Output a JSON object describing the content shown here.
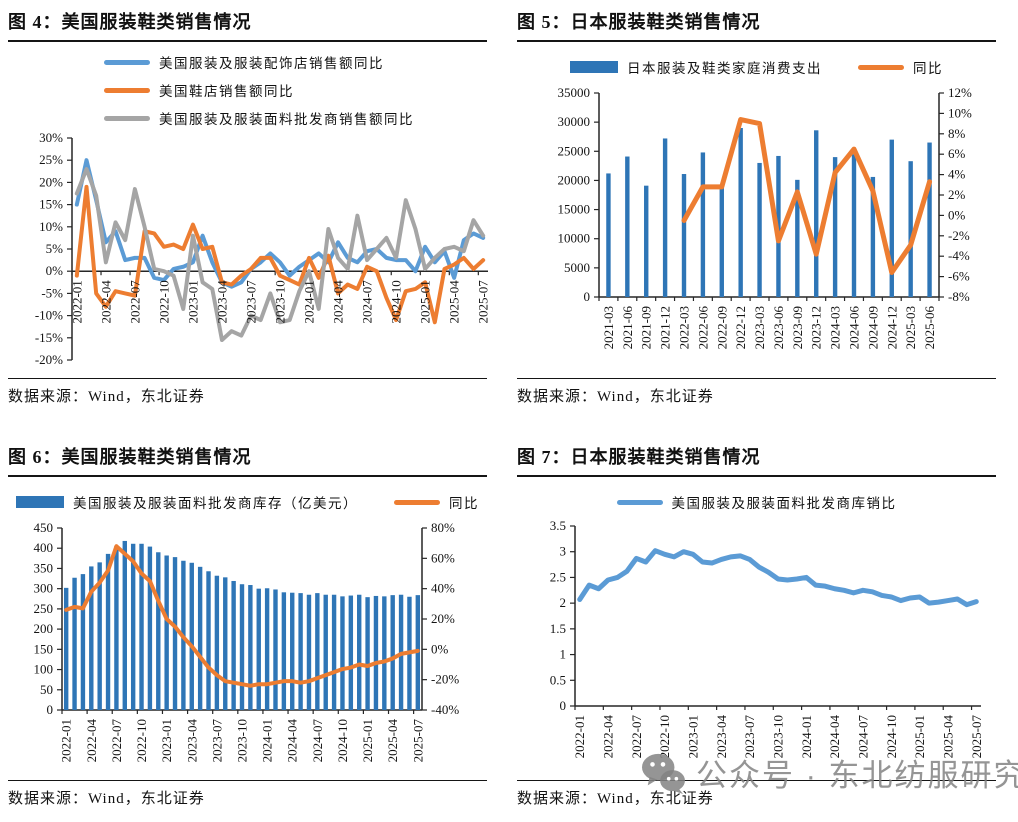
{
  "watermark": {
    "text": "公众号 · 东北纺服研究"
  },
  "charts": [
    {
      "title": "图 4：美国服装鞋类销售情况",
      "source": "数据来源：Wind，东北证券",
      "chart_data": {
        "type": "line",
        "categories": [
          "2022-01",
          "2022-02",
          "2022-03",
          "2022-04",
          "2022-05",
          "2022-06",
          "2022-07",
          "2022-08",
          "2022-09",
          "2022-10",
          "2022-11",
          "2022-12",
          "2023-01",
          "2023-02",
          "2023-03",
          "2023-04",
          "2023-05",
          "2023-06",
          "2023-07",
          "2023-08",
          "2023-09",
          "2023-10",
          "2023-11",
          "2023-12",
          "2024-01",
          "2024-02",
          "2024-03",
          "2024-04",
          "2024-05",
          "2024-06",
          "2024-07",
          "2024-08",
          "2024-09",
          "2024-10",
          "2024-11",
          "2024-12",
          "2025-01",
          "2025-02",
          "2025-03",
          "2025-04",
          "2025-05",
          "2025-06",
          "2025-07"
        ],
        "tick_every": 3,
        "legend_layout": "column",
        "x_labels_at_zero": true,
        "grid": false,
        "y_left": {
          "min": -20,
          "max": 30,
          "step": 5,
          "format": "pct"
        },
        "series": [
          {
            "name": "美国服装及服装配饰店销售额同比",
            "type": "line",
            "axis": "left",
            "color": "#5B9BD5",
            "values": [
              15,
              25,
              16,
              6.5,
              9,
              2.5,
              3,
              3,
              -1.5,
              -2,
              0.5,
              1,
              2,
              8,
              2,
              -2.5,
              -3.5,
              -2.5,
              0.5,
              2,
              4,
              2,
              -1,
              1,
              2.5,
              4,
              2,
              6.5,
              3,
              2,
              4.5,
              5,
              3,
              2.5,
              2.5,
              0,
              5.5,
              2,
              4.5,
              -1.5,
              7,
              8.5,
              7.5
            ]
          },
          {
            "name": "美国鞋店销售额同比",
            "type": "line",
            "axis": "left",
            "color": "#ED7D31",
            "values": [
              -1,
              19,
              -5,
              -8,
              -4.5,
              -5,
              -5.5,
              9,
              8.5,
              5.5,
              6,
              5,
              10.5,
              5,
              5.5,
              -2.5,
              -3,
              -1,
              0.5,
              3,
              3,
              -1,
              -2,
              -3,
              3,
              -1.5,
              3.5,
              -5,
              -3,
              -4,
              1,
              0,
              -6,
              -11,
              -4.5,
              -4,
              -2.5,
              -11.5,
              0.5,
              1.5,
              3,
              0.5,
              2.5
            ]
          },
          {
            "name": "美国服装及服装面料批发商销售额同比",
            "type": "line",
            "axis": "left",
            "color": "#A5A5A5",
            "values": [
              17.5,
              23,
              17,
              2,
              11,
              7,
              18.5,
              10,
              0.5,
              0,
              -1,
              -8.5,
              8,
              -2.5,
              -4,
              -15.5,
              -13.5,
              -14.5,
              -10,
              -11,
              -5,
              -11.5,
              -11,
              -4.5,
              0,
              -8.5,
              9.5,
              3,
              0.5,
              12.5,
              2.5,
              5,
              7.5,
              3,
              16,
              9.5,
              0.5,
              3,
              5,
              5.5,
              4.5,
              11.5,
              8
            ]
          }
        ]
      }
    },
    {
      "title": "图 5：日本服装鞋类销售情况",
      "source": "数据来源：Wind，东北证券",
      "chart_data": {
        "type": "bar+line",
        "categories": [
          "2021-03",
          "2021-06",
          "2021-09",
          "2021-12",
          "2022-03",
          "2022-06",
          "2022-09",
          "2022-12",
          "2023-03",
          "2023-06",
          "2023-09",
          "2023-12",
          "2024-03",
          "2024-06",
          "2024-09",
          "2024-12",
          "2025-03",
          "2025-06"
        ],
        "tick_every": 1,
        "legend_layout": "row",
        "x_labels_at_zero": false,
        "grid": false,
        "y_left": {
          "min": 0,
          "max": 35000,
          "step": 5000,
          "format": "int"
        },
        "y_right": {
          "min": -8,
          "max": 12,
          "step": 2,
          "format": "pct"
        },
        "series": [
          {
            "name": "日本服装及鞋类家庭消费支出",
            "type": "bar",
            "axis": "left",
            "color": "#2E75B6",
            "values": [
              21200,
              24100,
              19100,
              27200,
              21100,
              24800,
              18900,
              29000,
              23000,
              24200,
              20100,
              28600,
              24000,
              24500,
              20600,
              27000,
              23300,
              26500
            ]
          },
          {
            "name": "同比",
            "type": "line",
            "axis": "right",
            "color": "#ED7D31",
            "values": [
              null,
              null,
              null,
              null,
              -0.5,
              2.8,
              2.8,
              9.4,
              9.0,
              -2.5,
              2.3,
              -3.8,
              4.2,
              6.5,
              2.4,
              -5.6,
              -2.9,
              3.3
            ]
          }
        ]
      }
    },
    {
      "title": "图 6：美国服装鞋类销售情况",
      "source": "数据来源：Wind，东北证券",
      "chart_data": {
        "type": "bar+line",
        "categories": [
          "2022-01",
          "2022-02",
          "2022-03",
          "2022-04",
          "2022-05",
          "2022-06",
          "2022-07",
          "2022-08",
          "2022-09",
          "2022-10",
          "2022-11",
          "2022-12",
          "2023-01",
          "2023-02",
          "2023-03",
          "2023-04",
          "2023-05",
          "2023-06",
          "2023-07",
          "2023-08",
          "2023-09",
          "2023-10",
          "2023-11",
          "2023-12",
          "2024-01",
          "2024-02",
          "2024-03",
          "2024-04",
          "2024-05",
          "2024-06",
          "2024-07",
          "2024-08",
          "2024-09",
          "2024-10",
          "2024-11",
          "2024-12",
          "2025-01",
          "2025-02",
          "2025-03",
          "2025-04",
          "2025-05",
          "2025-06",
          "2025-07"
        ],
        "tick_every": 3,
        "legend_layout": "row",
        "x_labels_at_zero": false,
        "grid": false,
        "y_left": {
          "min": 0,
          "max": 450,
          "step": 50,
          "format": "int"
        },
        "y_right": {
          "min": -40,
          "max": 80,
          "step": 20,
          "format": "pct"
        },
        "series": [
          {
            "name": "美国服装及服装面料批发商库存（亿美元）",
            "type": "bar",
            "axis": "left",
            "color": "#2E75B6",
            "values": [
              302,
              327,
              336,
              355,
              365,
              386,
              405,
              418,
              411,
              411,
              404,
              390,
              382,
              378,
              369,
              364,
              354,
              343,
              332,
              328,
              319,
              311,
              309,
              300,
              301,
              298,
              291,
              290,
              289,
              285,
              289,
              285,
              285,
              281,
              283,
              285,
              279,
              282,
              281,
              284,
              285,
              280,
              284
            ]
          },
          {
            "name": "同比",
            "type": "line",
            "axis": "right",
            "color": "#ED7D31",
            "values": [
              26,
              28,
              27,
              38,
              44,
              52,
              68,
              63,
              58,
              50,
              45,
              32,
              20,
              15,
              8,
              2,
              -5,
              -12,
              -17,
              -21,
              -22,
              -23,
              -24,
              -23,
              -23,
              -22,
              -21,
              -21,
              -22,
              -21,
              -19,
              -17,
              -15,
              -13,
              -12,
              -10,
              -11,
              -9,
              -8,
              -6,
              -3,
              -2,
              -1
            ]
          }
        ]
      }
    },
    {
      "title": "图 7：日本服装鞋类销售情况",
      "source": "数据来源：Wind，东北证券",
      "chart_data": {
        "type": "line",
        "categories": [
          "2022-01",
          "2022-02",
          "2022-03",
          "2022-04",
          "2022-05",
          "2022-06",
          "2022-07",
          "2022-08",
          "2022-09",
          "2022-10",
          "2022-11",
          "2022-12",
          "2023-01",
          "2023-02",
          "2023-03",
          "2023-04",
          "2023-05",
          "2023-06",
          "2023-07",
          "2023-08",
          "2023-09",
          "2023-10",
          "2023-11",
          "2023-12",
          "2024-01",
          "2024-02",
          "2024-03",
          "2024-04",
          "2024-05",
          "2024-06",
          "2024-07",
          "2024-08",
          "2024-09",
          "2024-10",
          "2024-11",
          "2024-12",
          "2025-01",
          "2025-02",
          "2025-03",
          "2025-04",
          "2025-05",
          "2025-06",
          "2025-07"
        ],
        "tick_every": 3,
        "legend_layout": "row",
        "x_labels_at_zero": false,
        "grid": false,
        "y_left": {
          "min": 0,
          "max": 3.5,
          "step": 0.5,
          "format": "dec"
        },
        "series": [
          {
            "name": "美国服装及服装面料批发商库销比",
            "type": "line",
            "axis": "left",
            "color": "#5B9BD5",
            "values": [
              2.07,
              2.35,
              2.28,
              2.45,
              2.5,
              2.62,
              2.87,
              2.8,
              3.02,
              2.95,
              2.9,
              3.0,
              2.95,
              2.8,
              2.78,
              2.85,
              2.9,
              2.92,
              2.85,
              2.7,
              2.6,
              2.47,
              2.45,
              2.47,
              2.5,
              2.35,
              2.33,
              2.28,
              2.25,
              2.2,
              2.25,
              2.22,
              2.15,
              2.12,
              2.05,
              2.1,
              2.12,
              2.0,
              2.02,
              2.05,
              2.08,
              1.97,
              2.03
            ]
          }
        ]
      }
    }
  ]
}
